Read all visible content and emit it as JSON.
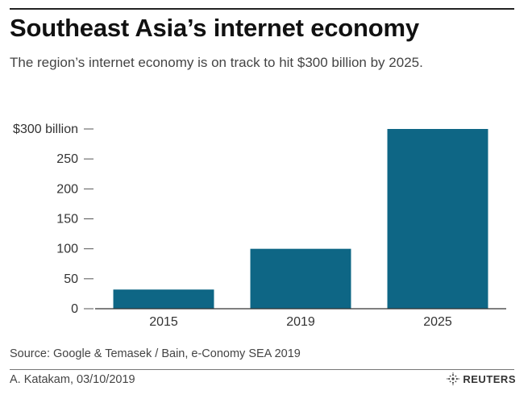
{
  "header": {
    "title": "Southeast Asia’s internet economy",
    "subtitle": "The region’s internet economy is on track to hit $300 billion by 2025."
  },
  "chart_data": {
    "type": "bar",
    "categories": [
      "2015",
      "2019",
      "2025"
    ],
    "values": [
      32,
      100,
      300
    ],
    "ylim": [
      0,
      300
    ],
    "yticks": [
      0,
      50,
      100,
      150,
      200,
      250,
      300
    ],
    "ytick_labels": [
      "0",
      "50",
      "100",
      "150",
      "200",
      "250",
      "$300 billion"
    ],
    "bar_color": "#0e6685",
    "grid": false,
    "title": "",
    "xlabel": "",
    "ylabel": ""
  },
  "footer": {
    "source": "Source: Google & Temasek / Bain, e-Conomy SEA 2019",
    "credit": "A. Katakam,  03/10/2019",
    "brand": "REUTERS",
    "brand_icon": "reuters-logo-icon"
  }
}
